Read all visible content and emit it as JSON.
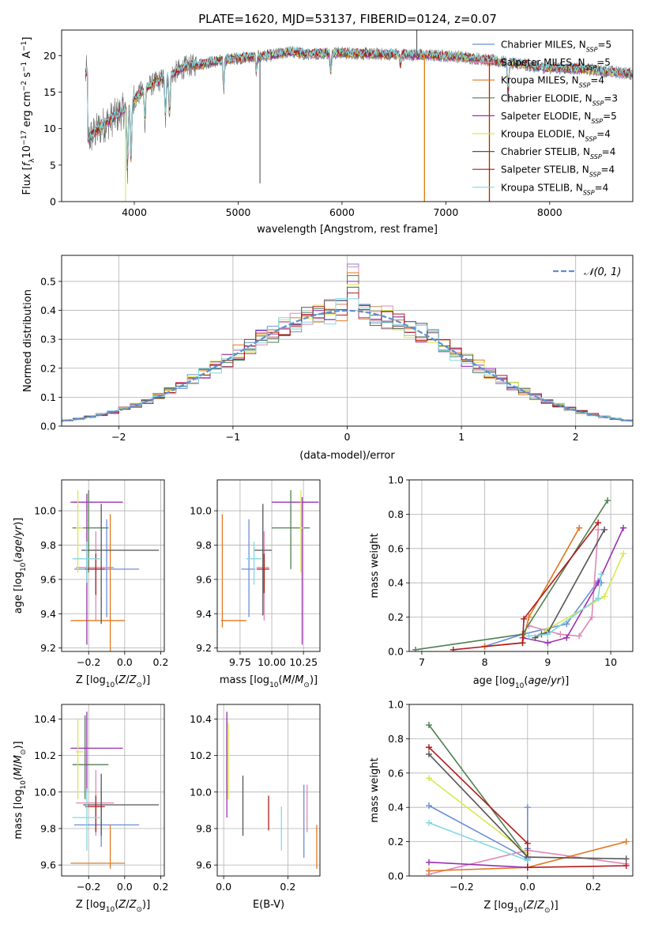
{
  "title": "PLATE=1620, MJD=53137, FIBERID=0124, z=0.07",
  "colors": {
    "series": [
      "#6b8fd6",
      "#e088b8",
      "#e07820",
      "#4f7f50",
      "#9b30b0",
      "#d8e850",
      "#555555",
      "#b01a1a",
      "#80d8e0"
    ],
    "gauss": "#5b8fd6"
  },
  "chart_data": [
    {
      "id": "spectrum",
      "type": "line",
      "xlabel": "wavelength [Angstrom, rest frame]",
      "ylabel": "Flux [f_λ10^-17 erg cm^-2 s^-1 A^-1]",
      "xlim": [
        3300,
        8800
      ],
      "ylim": [
        0,
        23.5
      ],
      "xticks": [
        4000,
        5000,
        6000,
        7000,
        8000
      ],
      "yticks": [
        0,
        5,
        10,
        15,
        20
      ],
      "grid": false,
      "legend_position": "top-right",
      "legend": [
        {
          "pre": "Chabrier MILES, N",
          "sub": "SSP",
          "post": "=5"
        },
        {
          "pre": "Salpeter MILES, N",
          "sub": "SSP",
          "post": "=5"
        },
        {
          "pre": "Kroupa MILES, N",
          "sub": "SSP",
          "post": "=4"
        },
        {
          "pre": "Chabrier ELODIE, N",
          "sub": "SSP",
          "post": "=3"
        },
        {
          "pre": "Salpeter ELODIE, N",
          "sub": "SSP",
          "post": "=5"
        },
        {
          "pre": "Kroupa ELODIE, N",
          "sub": "SSP",
          "post": "=4"
        },
        {
          "pre": "Chabrier STELIB, N",
          "sub": "SSP",
          "post": "=4"
        },
        {
          "pre": "Salpeter STELIB, N",
          "sub": "SSP",
          "post": "=4"
        },
        {
          "pre": "Kroupa STELIB, N",
          "sub": "SSP",
          "post": "=4"
        }
      ],
      "continuum": {
        "x": [
          3550,
          3700,
          3900,
          4100,
          4300,
          4500,
          4700,
          4900,
          5100,
          5300,
          5500,
          5700,
          5900,
          6100,
          6300,
          6500,
          6700,
          6900,
          7100,
          7300,
          7500,
          7700,
          7900,
          8100,
          8300,
          8500,
          8800
        ],
        "y": [
          8.5,
          10.5,
          12.5,
          15.5,
          17.0,
          18.5,
          19.0,
          19.5,
          19.8,
          20.0,
          20.5,
          20.2,
          20.4,
          20.3,
          20.2,
          20.2,
          20.1,
          20.0,
          19.9,
          19.6,
          19.2,
          18.9,
          18.4,
          18.3,
          18.2,
          17.9,
          17.5
        ]
      },
      "absorption": [
        {
          "x": 3934,
          "y": 3.8
        },
        {
          "x": 3969,
          "y": 4.5
        },
        {
          "x": 4102,
          "y": 10.5
        },
        {
          "x": 4300,
          "y": 11.0
        },
        {
          "x": 4340,
          "y": 11.5
        },
        {
          "x": 4861,
          "y": 15.0
        },
        {
          "x": 5175,
          "y": 17.5
        },
        {
          "x": 5893,
          "y": 17.5
        },
        {
          "x": 6563,
          "y": 18.5
        },
        {
          "x": 7600,
          "y": 14.0
        }
      ],
      "spikes": [
        {
          "x": 3915,
          "y": 0.0,
          "series": 5
        },
        {
          "x": 6790,
          "y": 0.0,
          "series": 5
        },
        {
          "x": 6795,
          "y": 0.0,
          "series": 2
        },
        {
          "x": 7418,
          "y": 0.0,
          "series": 2
        },
        {
          "x": 7420,
          "y": 0.0,
          "series": 7
        },
        {
          "x": 5210,
          "y": 2.5,
          "series": 6
        },
        {
          "x": 6720,
          "y": 23.5,
          "series": 6
        }
      ]
    },
    {
      "id": "residuals",
      "type": "line",
      "xlabel": "(data-model)/error",
      "ylabel": "Normed distribution",
      "xlim": [
        -2.5,
        2.5
      ],
      "ylim": [
        0,
        0.59
      ],
      "xticks": [
        -2,
        -1,
        0,
        1,
        2
      ],
      "yticks": [
        0.0,
        0.1,
        0.2,
        0.3,
        0.4,
        0.5
      ],
      "grid": true,
      "legend_position": "top-right",
      "gauss_label": "𝒩(0, 1)",
      "bin_width": 0.1,
      "center_bin_values": [
        0.56,
        0.55,
        0.53,
        0.52,
        0.5,
        0.49,
        0.48,
        0.46,
        0.44
      ]
    },
    {
      "id": "age-vs-Z",
      "type": "scatter",
      "xlabel": "Z [log10(Z/Z⊙)]",
      "ylabel": "age [log10(age/yr)]",
      "xlim": [
        -0.35,
        0.22
      ],
      "ylim": [
        9.18,
        10.18
      ],
      "xticks": [
        -0.2,
        0.0,
        0.2
      ],
      "yticks": [
        9.2,
        9.4,
        9.6,
        9.8,
        10.0
      ],
      "grid": true,
      "points": [
        {
          "s": 0,
          "x": -0.1,
          "y": 9.66,
          "xlo": -0.28,
          "xhi": 0.08,
          "ylo": 9.38,
          "yhi": 9.95
        },
        {
          "s": 1,
          "x": -0.16,
          "y": 9.67,
          "xlo": -0.27,
          "xhi": -0.06,
          "ylo": 9.36,
          "yhi": 9.88
        },
        {
          "s": 2,
          "x": -0.08,
          "y": 9.36,
          "xlo": -0.3,
          "xhi": 0.0,
          "ylo": 9.18,
          "yhi": 9.98
        },
        {
          "s": 3,
          "x": -0.2,
          "y": 9.9,
          "xlo": -0.29,
          "xhi": -0.09,
          "ylo": 9.64,
          "yhi": 10.12
        },
        {
          "s": 4,
          "x": -0.21,
          "y": 10.05,
          "xlo": -0.3,
          "xhi": -0.01,
          "ylo": 9.22,
          "yhi": 10.1
        },
        {
          "s": 5,
          "x": -0.26,
          "y": 9.9,
          "xlo": -0.27,
          "xhi": -0.23,
          "ylo": 9.64,
          "yhi": 10.12
        },
        {
          "s": 6,
          "x": -0.13,
          "y": 9.77,
          "xlo": -0.24,
          "xhi": 0.19,
          "ylo": 9.34,
          "yhi": 10.04
        },
        {
          "s": 7,
          "x": -0.16,
          "y": 9.66,
          "xlo": -0.22,
          "xhi": -0.11,
          "ylo": 9.51,
          "yhi": 9.75
        },
        {
          "s": 8,
          "x": -0.21,
          "y": 9.72,
          "xlo": -0.29,
          "xhi": -0.13,
          "ylo": 9.58,
          "yhi": 9.82
        }
      ]
    },
    {
      "id": "age-vs-mass",
      "type": "scatter",
      "xlabel": "mass [log10(M/M⊙)]",
      "ylabel": "",
      "xlim": [
        9.57,
        10.38
      ],
      "ylim": [
        9.18,
        10.18
      ],
      "xticks": [
        9.75,
        10.0,
        10.25
      ],
      "yticks": [
        9.2,
        9.4,
        9.6,
        9.8,
        10.0
      ],
      "grid": true,
      "points": [
        {
          "s": 0,
          "x": 9.82,
          "y": 9.66,
          "xlo": 9.76,
          "xhi": 9.87,
          "ylo": 9.38,
          "yhi": 9.95
        },
        {
          "s": 1,
          "x": 9.94,
          "y": 9.67,
          "xlo": 9.88,
          "xhi": 9.98,
          "ylo": 9.36,
          "yhi": 9.88
        },
        {
          "s": 2,
          "x": 9.61,
          "y": 9.36,
          "xlo": 9.6,
          "xhi": 9.8,
          "ylo": 9.32,
          "yhi": 9.98
        },
        {
          "s": 3,
          "x": 10.15,
          "y": 9.9,
          "xlo": 10.0,
          "xhi": 10.3,
          "ylo": 9.66,
          "yhi": 10.12
        },
        {
          "s": 4,
          "x": 10.24,
          "y": 10.05,
          "xlo": 10.0,
          "xhi": 10.37,
          "ylo": 9.22,
          "yhi": 10.08
        },
        {
          "s": 5,
          "x": 10.23,
          "y": 9.9,
          "xlo": 10.22,
          "xhi": 10.25,
          "ylo": 9.64,
          "yhi": 10.12
        },
        {
          "s": 6,
          "x": 9.93,
          "y": 9.77,
          "xlo": 9.86,
          "xhi": 10.0,
          "ylo": 9.39,
          "yhi": 10.04
        },
        {
          "s": 7,
          "x": 9.94,
          "y": 9.66,
          "xlo": 9.88,
          "xhi": 9.98,
          "ylo": 9.52,
          "yhi": 9.75
        },
        {
          "s": 8,
          "x": 9.86,
          "y": 9.72,
          "xlo": 9.8,
          "xhi": 9.92,
          "ylo": 9.57,
          "yhi": 9.82
        }
      ]
    },
    {
      "id": "weight-vs-age",
      "type": "line",
      "xlabel": "age [log10(age/yr)]",
      "ylabel": "mass weight",
      "xlim": [
        6.8,
        10.35
      ],
      "ylim": [
        0,
        1.0
      ],
      "xticks": [
        7,
        8,
        9,
        10
      ],
      "yticks": [
        0.0,
        0.2,
        0.4,
        0.6,
        0.8,
        1.0
      ],
      "grid": true,
      "series": [
        {
          "s": 0,
          "x": [
            8.0,
            8.6,
            9.3,
            9.8,
            9.85
          ],
          "y": [
            0.03,
            0.1,
            0.16,
            0.41,
            0.4
          ]
        },
        {
          "s": 1,
          "x": [
            8.7,
            9.2,
            9.5,
            9.7,
            9.8
          ],
          "y": [
            0.15,
            0.1,
            0.09,
            0.2,
            0.71
          ]
        },
        {
          "s": 2,
          "x": [
            8.0,
            8.6,
            8.7,
            9.5
          ],
          "y": [
            0.03,
            0.05,
            0.2,
            0.72
          ]
        },
        {
          "s": 3,
          "x": [
            6.9,
            8.6,
            9.95
          ],
          "y": [
            0.01,
            0.1,
            0.88
          ]
        },
        {
          "s": 4,
          "x": [
            8.6,
            9.0,
            9.3,
            9.8,
            10.2
          ],
          "y": [
            0.08,
            0.05,
            0.08,
            0.4,
            0.72
          ]
        },
        {
          "s": 5,
          "x": [
            8.9,
            9.0,
            9.9,
            10.2
          ],
          "y": [
            0.1,
            0.13,
            0.32,
            0.57
          ]
        },
        {
          "s": 6,
          "x": [
            8.8,
            8.9,
            9.0,
            9.9
          ],
          "y": [
            0.08,
            0.1,
            0.11,
            0.71
          ]
        },
        {
          "s": 7,
          "x": [
            7.5,
            8.6,
            8.62,
            9.8
          ],
          "y": [
            0.01,
            0.05,
            0.19,
            0.75
          ]
        },
        {
          "s": 8,
          "x": [
            8.7,
            9.0,
            9.8,
            9.85
          ],
          "y": [
            0.09,
            0.1,
            0.31,
            0.45
          ]
        }
      ]
    },
    {
      "id": "mass-vs-Z",
      "type": "scatter",
      "xlabel": "Z [log10(Z/Z⊙)]",
      "ylabel": "mass [log10(M/M⊙)]",
      "xlim": [
        -0.35,
        0.22
      ],
      "ylim": [
        9.54,
        10.48
      ],
      "xticks": [
        -0.2,
        0.0,
        0.2
      ],
      "yticks": [
        9.6,
        9.8,
        10.0,
        10.2,
        10.4
      ],
      "grid": true,
      "points": [
        {
          "s": 0,
          "x": -0.13,
          "y": 9.82,
          "xlo": -0.28,
          "xhi": 0.08,
          "ylo": 9.7,
          "yhi": 10.0
        },
        {
          "s": 1,
          "x": -0.16,
          "y": 9.94,
          "xlo": -0.27,
          "xhi": -0.06,
          "ylo": 9.76,
          "yhi": 10.12
        },
        {
          "s": 2,
          "x": -0.08,
          "y": 9.61,
          "xlo": -0.3,
          "xhi": 0.0,
          "ylo": 9.58,
          "yhi": 9.82
        },
        {
          "s": 3,
          "x": -0.22,
          "y": 10.15,
          "xlo": -0.29,
          "xhi": -0.09,
          "ylo": 9.96,
          "yhi": 10.42
        },
        {
          "s": 4,
          "x": -0.21,
          "y": 10.24,
          "xlo": -0.3,
          "xhi": -0.01,
          "ylo": 10.0,
          "yhi": 10.44
        },
        {
          "s": 5,
          "x": -0.26,
          "y": 10.22,
          "xlo": -0.27,
          "xhi": -0.23,
          "ylo": 9.96,
          "yhi": 10.4
        },
        {
          "s": 6,
          "x": -0.13,
          "y": 9.93,
          "xlo": -0.23,
          "xhi": 0.19,
          "ylo": 9.76,
          "yhi": 10.1
        },
        {
          "s": 7,
          "x": -0.16,
          "y": 9.92,
          "xlo": -0.22,
          "xhi": -0.11,
          "ylo": 9.78,
          "yhi": 9.98
        },
        {
          "s": 8,
          "x": -0.21,
          "y": 9.86,
          "xlo": -0.29,
          "xhi": -0.13,
          "ylo": 9.68,
          "yhi": 10.02
        }
      ]
    },
    {
      "id": "mass-vs-ebv",
      "type": "scatter",
      "xlabel": "E(B-V)",
      "ylabel": "",
      "xlim": [
        -0.02,
        0.3
      ],
      "ylim": [
        9.54,
        10.48
      ],
      "xticks": [
        0.0,
        0.2
      ],
      "yticks": [
        9.6,
        9.8,
        10.0,
        10.2,
        10.4
      ],
      "grid": true,
      "points": [
        {
          "s": 0,
          "x": 0.25,
          "y": 9.83,
          "ylo": 9.64,
          "yhi": 10.04
        },
        {
          "s": 1,
          "x": 0.26,
          "y": 9.93,
          "ylo": 9.78,
          "yhi": 10.04
        },
        {
          "s": 2,
          "x": 0.29,
          "y": 9.7,
          "ylo": 9.58,
          "yhi": 9.82
        },
        {
          "s": 3,
          "x": 0.01,
          "y": 10.18,
          "ylo": 9.96,
          "yhi": 10.4
        },
        {
          "s": 4,
          "x": 0.01,
          "y": 10.18,
          "ylo": 9.86,
          "yhi": 10.44
        },
        {
          "s": 5,
          "x": 0.015,
          "y": 10.18,
          "ylo": 9.96,
          "yhi": 10.38
        },
        {
          "s": 6,
          "x": 0.06,
          "y": 9.93,
          "ylo": 9.76,
          "yhi": 10.09
        },
        {
          "s": 7,
          "x": 0.14,
          "y": 9.88,
          "ylo": 9.79,
          "yhi": 9.98
        },
        {
          "s": 8,
          "x": 0.18,
          "y": 9.8,
          "ylo": 9.68,
          "yhi": 9.92
        }
      ]
    },
    {
      "id": "weight-vs-Z",
      "type": "line",
      "xlabel": "Z [log10(Z/Z⊙)]",
      "ylabel": "mass weight",
      "xlim": [
        -0.36,
        0.32
      ],
      "ylim": [
        0,
        1.0
      ],
      "xticks": [
        -0.2,
        0.0,
        0.2
      ],
      "yticks": [
        0.0,
        0.2,
        0.4,
        0.6,
        0.8,
        1.0
      ],
      "grid": true,
      "series": [
        {
          "s": 0,
          "x": [
            -0.3,
            0.0,
            0.0,
            0.0
          ],
          "y": [
            0.41,
            0.1,
            0.16,
            0.4
          ]
        },
        {
          "s": 1,
          "x": [
            -0.3,
            0.0,
            0.3
          ],
          "y": [
            0.01,
            0.15,
            0.07
          ]
        },
        {
          "s": 2,
          "x": [
            -0.3,
            0.0,
            0.3
          ],
          "y": [
            0.03,
            0.05,
            0.2
          ]
        },
        {
          "s": 3,
          "x": [
            -0.3,
            0.0
          ],
          "y": [
            0.88,
            0.11
          ]
        },
        {
          "s": 4,
          "x": [
            -0.3,
            0.0
          ],
          "y": [
            0.08,
            0.05
          ]
        },
        {
          "s": 5,
          "x": [
            -0.3,
            0.0
          ],
          "y": [
            0.57,
            0.13
          ]
        },
        {
          "s": 6,
          "x": [
            -0.3,
            0.0,
            0.3
          ],
          "y": [
            0.71,
            0.11,
            0.1
          ]
        },
        {
          "s": 7,
          "x": [
            -0.3,
            0.0,
            0.0,
            0.3
          ],
          "y": [
            0.75,
            0.19,
            0.05,
            0.06
          ]
        },
        {
          "s": 8,
          "x": [
            -0.3,
            0.0
          ],
          "y": [
            0.31,
            0.09
          ]
        }
      ]
    }
  ]
}
